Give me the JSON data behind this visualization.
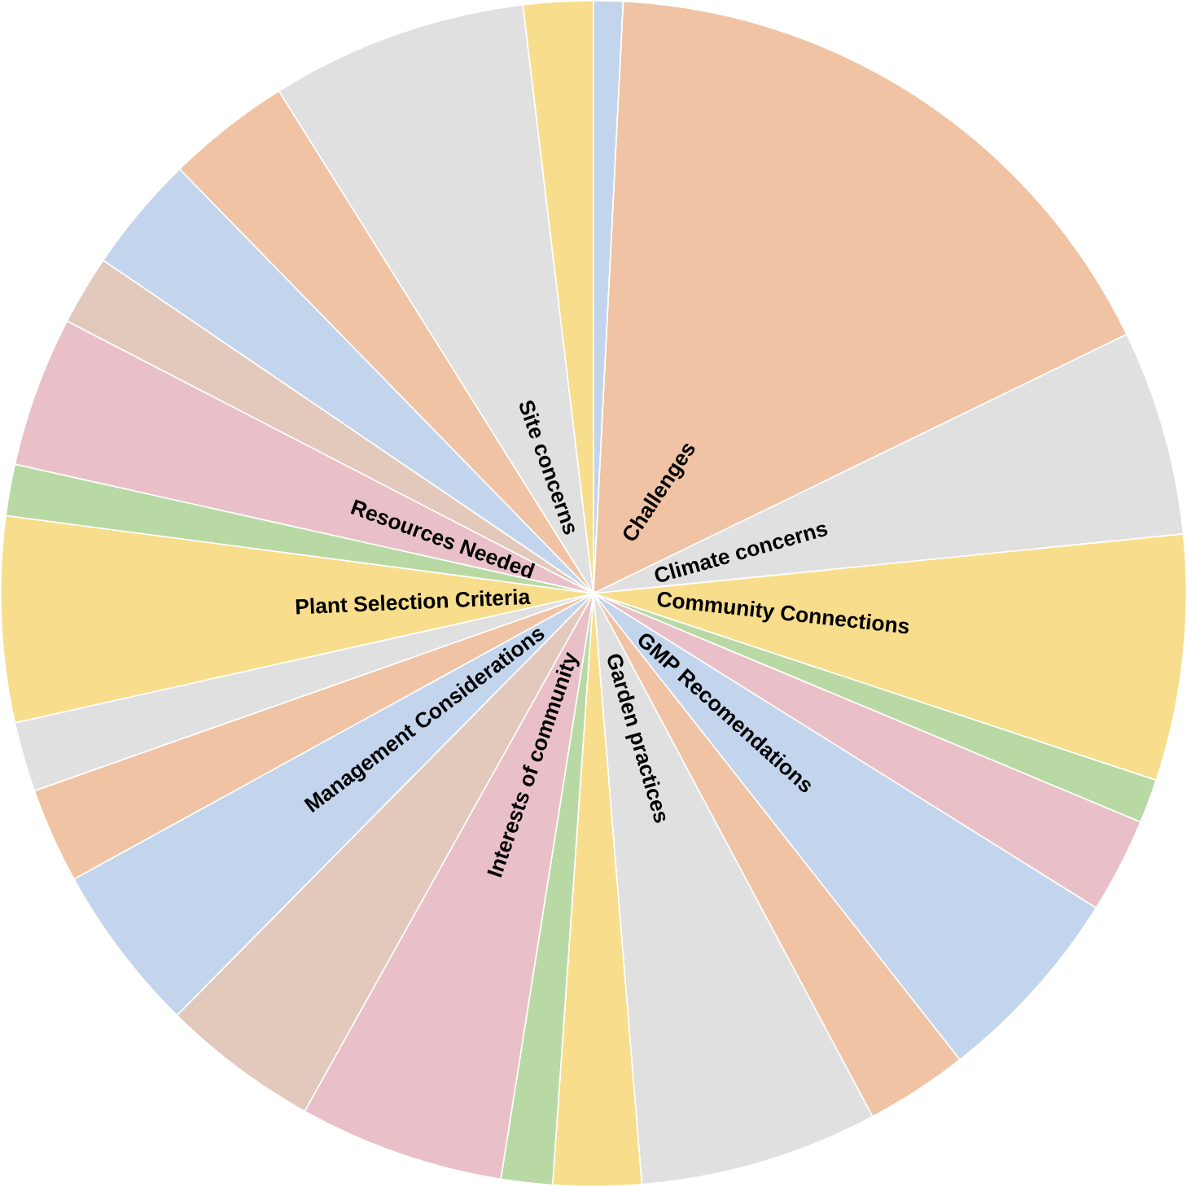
{
  "chart_data": {
    "type": "pie",
    "categories": [
      null,
      "Challenges",
      "Climate concerns",
      "Community Connections",
      null,
      null,
      "GMP Recomendations",
      null,
      "Garden practices",
      null,
      null,
      "Interests of community",
      null,
      "Management Considerations",
      null,
      null,
      "Plant Selection Criteria",
      null,
      "Resources Needed",
      null,
      null,
      null,
      "Site concerns",
      null
    ],
    "values": [
      0.8,
      17.0,
      5.6,
      6.7,
      1.2,
      2.6,
      5.5,
      2.8,
      6.5,
      2.4,
      1.4,
      5.6,
      4.3,
      4.6,
      2.6,
      1.9,
      5.6,
      1.4,
      4.1,
      1.9,
      3.2,
      3.4,
      7.0,
      1.9
    ],
    "colors": [
      "#c3d5ec",
      "#efc3a4",
      "#e0e0e0",
      "#f8de8c",
      "#b8d9a4",
      "#e9c0c8",
      "#c3d5ec",
      "#efc3a4",
      "#e0e0e0",
      "#f8de8c",
      "#b8d9a4",
      "#e9c0c8",
      "#e2c9bb",
      "#c3d5ec",
      "#efc3a4",
      "#e0e0e0",
      "#f8de8c",
      "#b8d9a4",
      "#e9c0c8",
      "#e2c9bb",
      "#c3d5ec",
      "#efc3a4",
      "#e0e0e0",
      "#f8de8c"
    ]
  }
}
